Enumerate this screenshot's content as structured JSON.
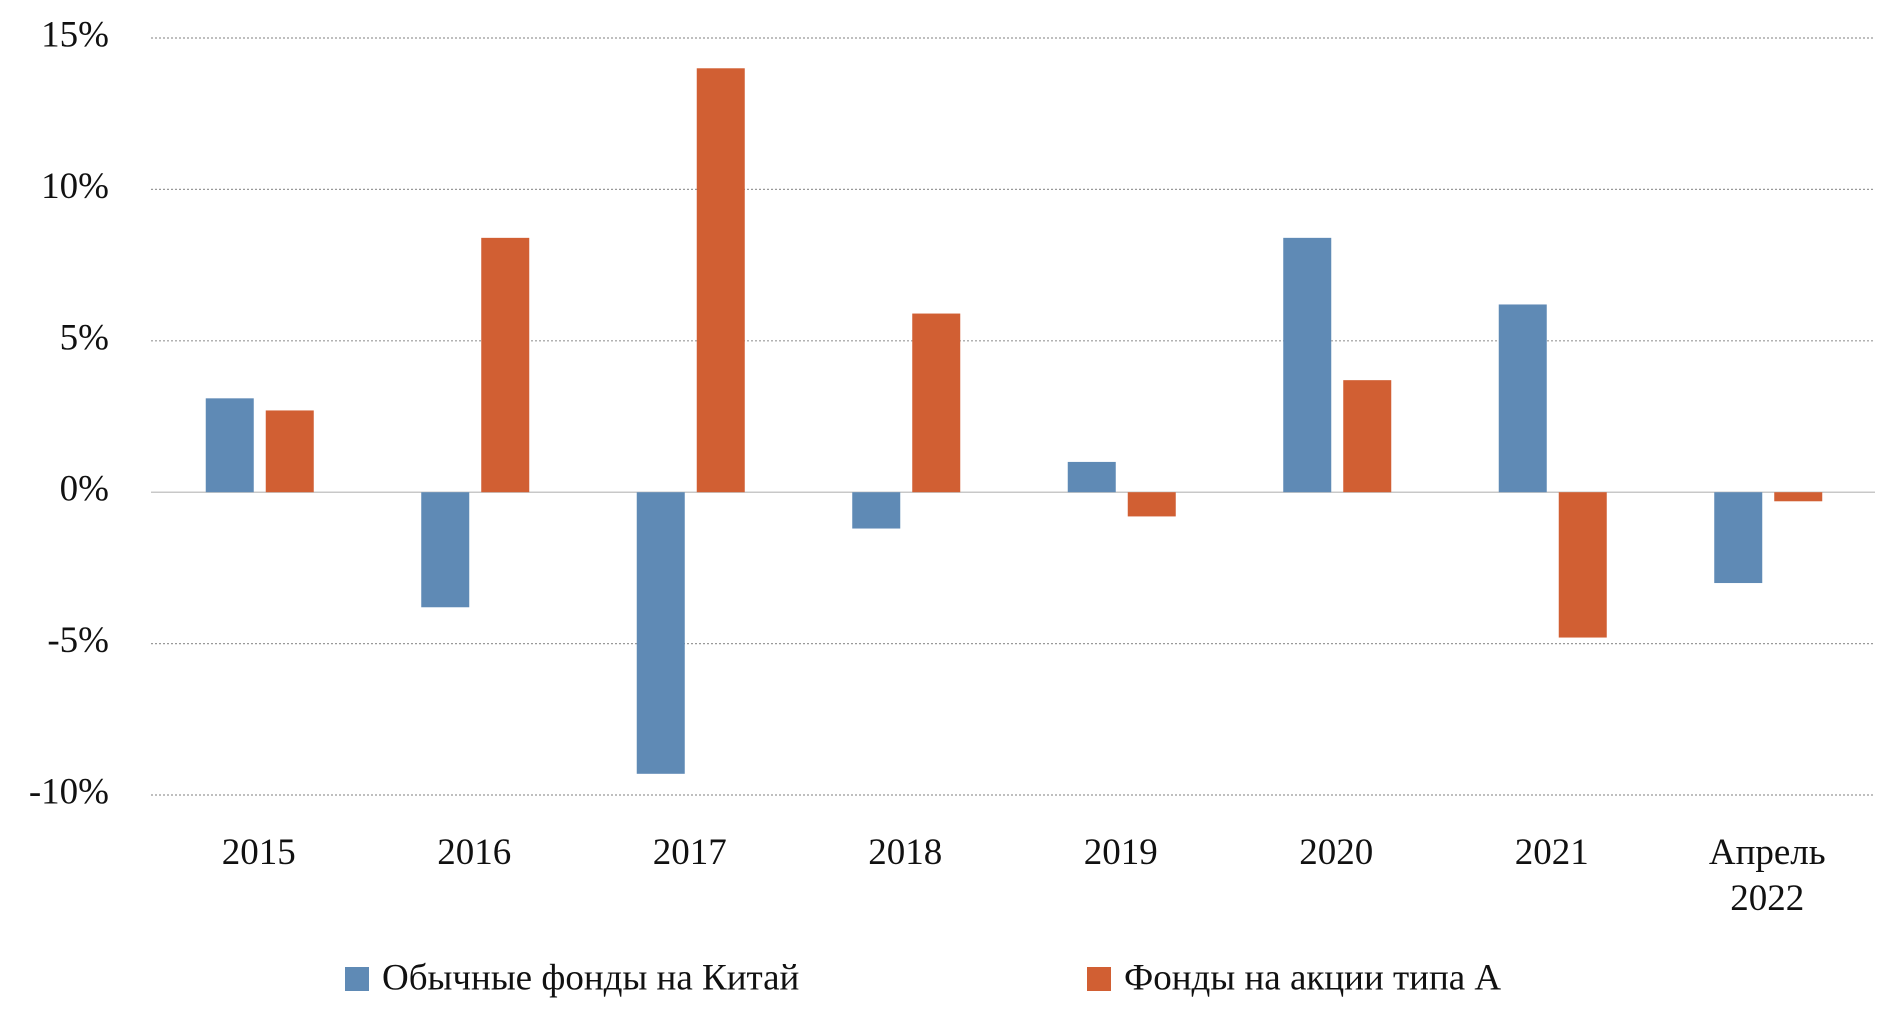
{
  "chart_data": {
    "type": "bar",
    "categories": [
      "2015",
      "2016",
      "2017",
      "2018",
      "2019",
      "2020",
      "2021",
      "Апрель 2022"
    ],
    "series": [
      {
        "name": "Обычные фонды на Китай",
        "color": "#5f8ab5",
        "values": [
          3.1,
          -3.8,
          -9.3,
          -1.2,
          1.0,
          8.4,
          6.2,
          -3.0
        ]
      },
      {
        "name": "Фонды на акции типа А",
        "color": "#d15f33",
        "values": [
          2.7,
          8.4,
          14.0,
          5.9,
          -0.8,
          3.7,
          -4.8,
          -0.3
        ]
      }
    ],
    "ylim": [
      -10,
      15
    ],
    "yticks": [
      {
        "value": -10,
        "label": "-10%"
      },
      {
        "value": -5,
        "label": "-5%"
      },
      {
        "value": 0,
        "label": "0%"
      },
      {
        "value": 5,
        "label": "5%"
      },
      {
        "value": 10,
        "label": "10%"
      },
      {
        "value": 15,
        "label": "15%"
      }
    ],
    "grid": true,
    "legend": "bottom"
  }
}
